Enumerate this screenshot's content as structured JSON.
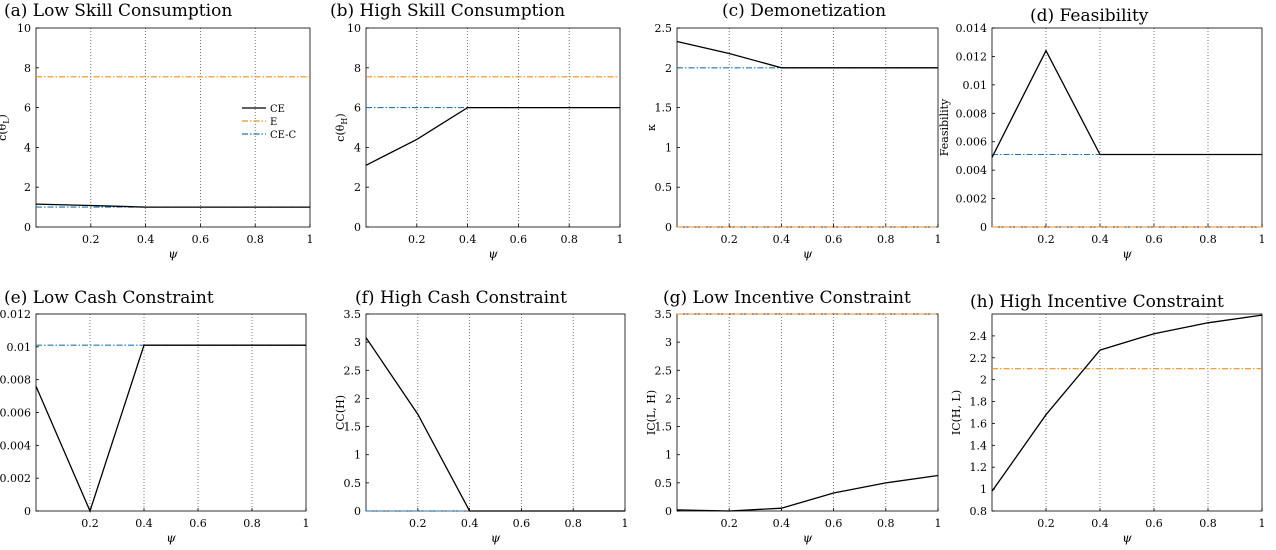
{
  "figure": {
    "axis_x_label": "ψ",
    "colors": {
      "CE": "#000000",
      "E": "#f28e1c",
      "CE-C": "#1f77b4",
      "grid": "#555555"
    }
  },
  "chart_data": [
    {
      "type": "line",
      "title": "(a) Low Skill Consumption",
      "xlabel": "ψ",
      "ylabel": "c(θ_L)",
      "xlim": [
        0,
        1
      ],
      "ylim": [
        0,
        10
      ],
      "xticks": [
        "0.2",
        "0.4",
        "0.6",
        "0.8",
        "1"
      ],
      "yticks": [
        "0",
        "2",
        "4",
        "6",
        "8",
        "10"
      ],
      "x": [
        0,
        0.2,
        0.4,
        0.6,
        0.8,
        1
      ],
      "legend": {
        "placement": "upper-right",
        "entries": [
          "CE",
          "E",
          "CE-C"
        ]
      },
      "series": [
        {
          "name": "CE",
          "values": [
            1.15,
            1.08,
            1.0,
            1.0,
            1.0,
            1.0
          ]
        },
        {
          "name": "E",
          "values": [
            7.55,
            7.55,
            7.55,
            7.55,
            7.55,
            7.55
          ]
        },
        {
          "name": "CE-C",
          "values": [
            1.0,
            1.0,
            1.0,
            1.0,
            1.0,
            1.0
          ]
        }
      ]
    },
    {
      "type": "line",
      "title": "(b) High Skill Consumption",
      "xlabel": "ψ",
      "ylabel": "c(θ_H)",
      "xlim": [
        0,
        1
      ],
      "ylim": [
        0,
        10
      ],
      "xticks": [
        "0.2",
        "0.4",
        "0.6",
        "0.8",
        "1"
      ],
      "yticks": [
        "0",
        "2",
        "4",
        "6",
        "8",
        "10"
      ],
      "x": [
        0,
        0.2,
        0.4,
        0.6,
        0.8,
        1
      ],
      "series": [
        {
          "name": "CE",
          "values": [
            3.1,
            4.4,
            6.0,
            6.0,
            6.0,
            6.0
          ]
        },
        {
          "name": "E",
          "values": [
            7.55,
            7.55,
            7.55,
            7.55,
            7.55,
            7.55
          ]
        },
        {
          "name": "CE-C",
          "values": [
            6.0,
            6.0,
            6.0,
            6.0,
            6.0,
            6.0
          ]
        }
      ]
    },
    {
      "type": "line",
      "title": "(c) Demonetization",
      "xlabel": "ψ",
      "ylabel": "κ",
      "xlim": [
        0,
        1
      ],
      "ylim": [
        0,
        2.5
      ],
      "xticks": [
        "0.2",
        "0.4",
        "0.6",
        "0.8",
        "1"
      ],
      "yticks": [
        "0",
        "0.5",
        "1",
        "1.5",
        "2",
        "2.5"
      ],
      "x": [
        0,
        0.2,
        0.4,
        0.6,
        0.8,
        1
      ],
      "series": [
        {
          "name": "CE",
          "values": [
            2.33,
            2.18,
            2.0,
            2.0,
            2.0,
            2.0
          ]
        },
        {
          "name": "E",
          "values": [
            0,
            0,
            0,
            0,
            0,
            0
          ]
        },
        {
          "name": "CE-C",
          "values": [
            2.0,
            2.0,
            2.0,
            2.0,
            2.0,
            2.0
          ]
        }
      ]
    },
    {
      "type": "line",
      "title": "(d) Feasibility",
      "xlabel": "ψ",
      "ylabel": "Feasibility",
      "xlim": [
        0,
        1
      ],
      "ylim": [
        0,
        0.014
      ],
      "xticks": [
        "0.2",
        "0.4",
        "0.6",
        "0.8",
        "1"
      ],
      "yticks": [
        "0",
        "0.002",
        "0.004",
        "0.006",
        "0.008",
        "0.01",
        "0.012",
        "0.014"
      ],
      "x": [
        0,
        0.2,
        0.4,
        0.6,
        0.8,
        1
      ],
      "series": [
        {
          "name": "CE",
          "values": [
            0.0049,
            0.0124,
            0.0051,
            0.0051,
            0.0051,
            0.0051
          ]
        },
        {
          "name": "E",
          "values": [
            0,
            0,
            0,
            0,
            0,
            0
          ]
        },
        {
          "name": "CE-C",
          "values": [
            0.0051,
            0.0051,
            0.0051,
            0.0051,
            0.0051,
            0.0051
          ]
        }
      ]
    },
    {
      "type": "line",
      "title": "(e) Low Cash Constraint",
      "xlabel": "ψ",
      "ylabel": "CC(L)",
      "xlim": [
        0,
        1
      ],
      "ylim": [
        0,
        0.012
      ],
      "xticks": [
        "0.2",
        "0.4",
        "0.6",
        "0.8",
        "1"
      ],
      "yticks": [
        "0",
        "0.002",
        "0.004",
        "0.006",
        "0.008",
        "0.01",
        "0.012"
      ],
      "x": [
        0,
        0.2,
        0.4,
        0.6,
        0.8,
        1
      ],
      "series": [
        {
          "name": "CE",
          "values": [
            0.0076,
            0,
            0.0101,
            0.0101,
            0.0101,
            0.0101
          ]
        },
        {
          "name": "CE-C",
          "values": [
            0.0101,
            0.0101,
            0.0101,
            0.0101,
            0.0101,
            0.0101
          ]
        }
      ]
    },
    {
      "type": "line",
      "title": "(f) High Cash Constraint",
      "xlabel": "ψ",
      "ylabel": "CC(H)",
      "xlim": [
        0,
        1
      ],
      "ylim": [
        0,
        3.5
      ],
      "xticks": [
        "0.2",
        "0.4",
        "0.6",
        "0.8",
        "1"
      ],
      "yticks": [
        "0",
        "0.5",
        "1",
        "1.5",
        "2",
        "2.5",
        "3",
        "3.5"
      ],
      "x": [
        0,
        0.2,
        0.4,
        0.6,
        0.8,
        1
      ],
      "series": [
        {
          "name": "CE",
          "values": [
            3.08,
            1.72,
            0,
            0,
            0,
            0
          ]
        },
        {
          "name": "CE-C",
          "values": [
            0,
            0,
            0,
            0,
            0,
            0
          ]
        }
      ]
    },
    {
      "type": "line",
      "title": "(g) Low Incentive Constraint",
      "xlabel": "ψ",
      "ylabel": "IC(L, H)",
      "xlim": [
        0,
        1
      ],
      "ylim": [
        0,
        3.5
      ],
      "xticks": [
        "0.2",
        "0.4",
        "0.6",
        "0.8",
        "1"
      ],
      "yticks": [
        "0",
        "0.5",
        "1",
        "1.5",
        "2",
        "2.5",
        "3",
        "3.5"
      ],
      "x": [
        0,
        0.2,
        0.4,
        0.6,
        0.8,
        1
      ],
      "series": [
        {
          "name": "CE",
          "values": [
            0.02,
            0,
            0.05,
            0.32,
            0.5,
            0.63
          ]
        },
        {
          "name": "E",
          "values": [
            3.5,
            3.5,
            3.5,
            3.5,
            3.5,
            3.5
          ]
        }
      ]
    },
    {
      "type": "line",
      "title": "(h) High Incentive Constraint",
      "xlabel": "ψ",
      "ylabel": "IC(H, L)",
      "xlim": [
        0,
        1
      ],
      "ylim": [
        0.8,
        2.6
      ],
      "xticks": [
        "0.2",
        "0.4",
        "0.6",
        "0.8",
        "1"
      ],
      "yticks": [
        "0.8",
        "1",
        "1.2",
        "1.4",
        "1.6",
        "1.8",
        "2",
        "2.2",
        "2.4"
      ],
      "x": [
        0,
        0.2,
        0.4,
        0.6,
        0.8,
        1
      ],
      "series": [
        {
          "name": "CE",
          "values": [
            0.98,
            1.68,
            2.27,
            2.42,
            2.52,
            2.59
          ]
        },
        {
          "name": "E",
          "values": [
            2.1,
            2.1,
            2.1,
            2.1,
            2.1,
            2.1
          ]
        }
      ]
    }
  ]
}
